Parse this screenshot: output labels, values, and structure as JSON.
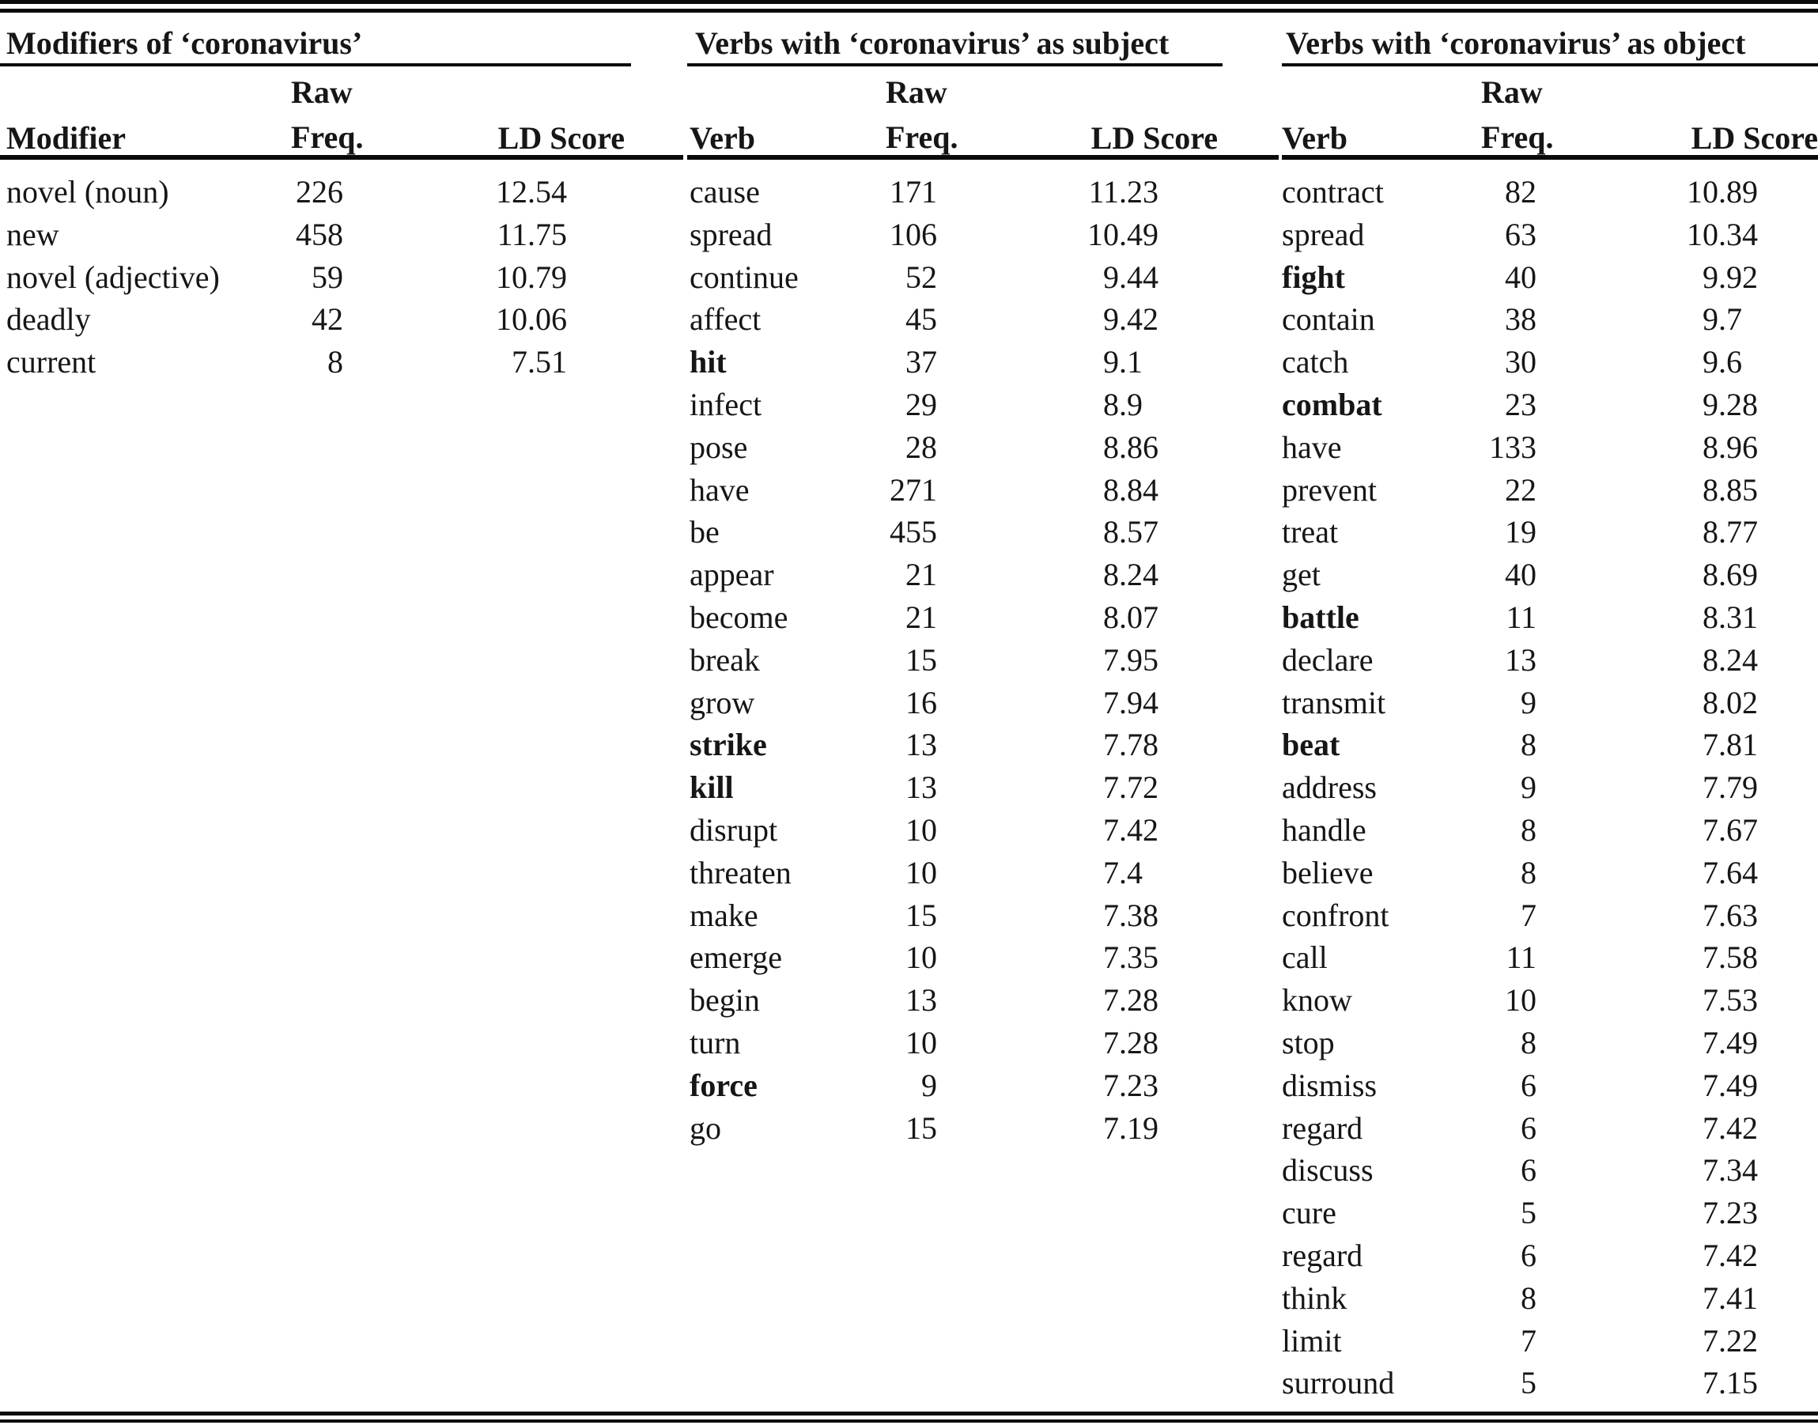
{
  "page": {
    "background": "#ffffff",
    "text_color": "#161616",
    "rule_color": "#0a0a0a"
  },
  "tables": [
    {
      "group_title": "Modifiers of ‘coronavirus’",
      "columns": {
        "term": "Modifier",
        "freq_line1": "Raw",
        "freq_line2": "Freq.",
        "ld": "LD Score"
      },
      "rows": [
        {
          "term": "novel (noun)",
          "freq": "226",
          "ld": "12.54",
          "bold": false
        },
        {
          "term": "new",
          "freq": "458",
          "ld": "11.75",
          "bold": false
        },
        {
          "term": "novel (adjective)",
          "freq": "59",
          "ld": "10.79",
          "bold": false
        },
        {
          "term": "deadly",
          "freq": "42",
          "ld": "10.06",
          "bold": false
        },
        {
          "term": "current",
          "freq": "8",
          "ld": "7.51",
          "bold": false
        }
      ]
    },
    {
      "group_title": "Verbs with ‘coronavirus’ as subject",
      "columns": {
        "term": "Verb",
        "freq_line1": "Raw",
        "freq_line2": "Freq.",
        "ld": "LD Score"
      },
      "rows": [
        {
          "term": "cause",
          "freq": "171",
          "ld": "11.23",
          "bold": false
        },
        {
          "term": "spread",
          "freq": "106",
          "ld": "10.49",
          "bold": false
        },
        {
          "term": "continue",
          "freq": "52",
          "ld": "9.44",
          "bold": false
        },
        {
          "term": "affect",
          "freq": "45",
          "ld": "9.42",
          "bold": false
        },
        {
          "term": "hit",
          "freq": "37",
          "ld": "9.1",
          "bold": true
        },
        {
          "term": "infect",
          "freq": "29",
          "ld": "8.9",
          "bold": false
        },
        {
          "term": "pose",
          "freq": "28",
          "ld": "8.86",
          "bold": false
        },
        {
          "term": "have",
          "freq": "271",
          "ld": "8.84",
          "bold": false
        },
        {
          "term": "be",
          "freq": "455",
          "ld": "8.57",
          "bold": false
        },
        {
          "term": "appear",
          "freq": "21",
          "ld": "8.24",
          "bold": false
        },
        {
          "term": "become",
          "freq": "21",
          "ld": "8.07",
          "bold": false
        },
        {
          "term": "break",
          "freq": "15",
          "ld": "7.95",
          "bold": false
        },
        {
          "term": "grow",
          "freq": "16",
          "ld": "7.94",
          "bold": false
        },
        {
          "term": "strike",
          "freq": "13",
          "ld": "7.78",
          "bold": true
        },
        {
          "term": "kill",
          "freq": "13",
          "ld": "7.72",
          "bold": true
        },
        {
          "term": "disrupt",
          "freq": "10",
          "ld": "7.42",
          "bold": false
        },
        {
          "term": "threaten",
          "freq": "10",
          "ld": "7.4",
          "bold": false
        },
        {
          "term": "make",
          "freq": "15",
          "ld": "7.38",
          "bold": false
        },
        {
          "term": "emerge",
          "freq": "10",
          "ld": "7.35",
          "bold": false
        },
        {
          "term": "begin",
          "freq": "13",
          "ld": "7.28",
          "bold": false
        },
        {
          "term": "turn",
          "freq": "10",
          "ld": "7.28",
          "bold": false
        },
        {
          "term": "force",
          "freq": "9",
          "ld": "7.23",
          "bold": true
        },
        {
          "term": "go",
          "freq": "15",
          "ld": "7.19",
          "bold": false
        }
      ]
    },
    {
      "group_title": "Verbs with ‘coronavirus’ as object",
      "columns": {
        "term": "Verb",
        "freq_line1": "Raw",
        "freq_line2": "Freq.",
        "ld": "LD Score"
      },
      "rows": [
        {
          "term": "contract",
          "freq": "82",
          "ld": "10.89",
          "bold": false
        },
        {
          "term": "spread",
          "freq": "63",
          "ld": "10.34",
          "bold": false
        },
        {
          "term": "fight",
          "freq": "40",
          "ld": "9.92",
          "bold": true
        },
        {
          "term": "contain",
          "freq": "38",
          "ld": "9.7",
          "bold": false
        },
        {
          "term": "catch",
          "freq": "30",
          "ld": "9.6",
          "bold": false
        },
        {
          "term": "combat",
          "freq": "23",
          "ld": "9.28",
          "bold": true
        },
        {
          "term": "have",
          "freq": "133",
          "ld": "8.96",
          "bold": false
        },
        {
          "term": "prevent",
          "freq": "22",
          "ld": "8.85",
          "bold": false
        },
        {
          "term": "treat",
          "freq": "19",
          "ld": "8.77",
          "bold": false
        },
        {
          "term": "get",
          "freq": "40",
          "ld": "8.69",
          "bold": false
        },
        {
          "term": "battle",
          "freq": "11",
          "ld": "8.31",
          "bold": true
        },
        {
          "term": "declare",
          "freq": "13",
          "ld": "8.24",
          "bold": false
        },
        {
          "term": "transmit",
          "freq": "9",
          "ld": "8.02",
          "bold": false
        },
        {
          "term": "beat",
          "freq": "8",
          "ld": "7.81",
          "bold": true
        },
        {
          "term": "address",
          "freq": "9",
          "ld": "7.79",
          "bold": false
        },
        {
          "term": "handle",
          "freq": "8",
          "ld": "7.67",
          "bold": false
        },
        {
          "term": "believe",
          "freq": "8",
          "ld": "7.64",
          "bold": false
        },
        {
          "term": "confront",
          "freq": "7",
          "ld": "7.63",
          "bold": false
        },
        {
          "term": "call",
          "freq": "11",
          "ld": "7.58",
          "bold": false
        },
        {
          "term": "know",
          "freq": "10",
          "ld": "7.53",
          "bold": false
        },
        {
          "term": "stop",
          "freq": "8",
          "ld": "7.49",
          "bold": false
        },
        {
          "term": "dismiss",
          "freq": "6",
          "ld": "7.49",
          "bold": false
        },
        {
          "term": "regard",
          "freq": "6",
          "ld": "7.42",
          "bold": false
        },
        {
          "term": "discuss",
          "freq": "6",
          "ld": "7.34",
          "bold": false
        },
        {
          "term": "cure",
          "freq": "5",
          "ld": "7.23",
          "bold": false
        },
        {
          "term": "regard",
          "freq": "6",
          "ld": "7.42",
          "bold": false
        },
        {
          "term": "think",
          "freq": "8",
          "ld": "7.41",
          "bold": false
        },
        {
          "term": "limit",
          "freq": "7",
          "ld": "7.22",
          "bold": false
        },
        {
          "term": "surround",
          "freq": "5",
          "ld": "7.15",
          "bold": false
        }
      ]
    }
  ]
}
